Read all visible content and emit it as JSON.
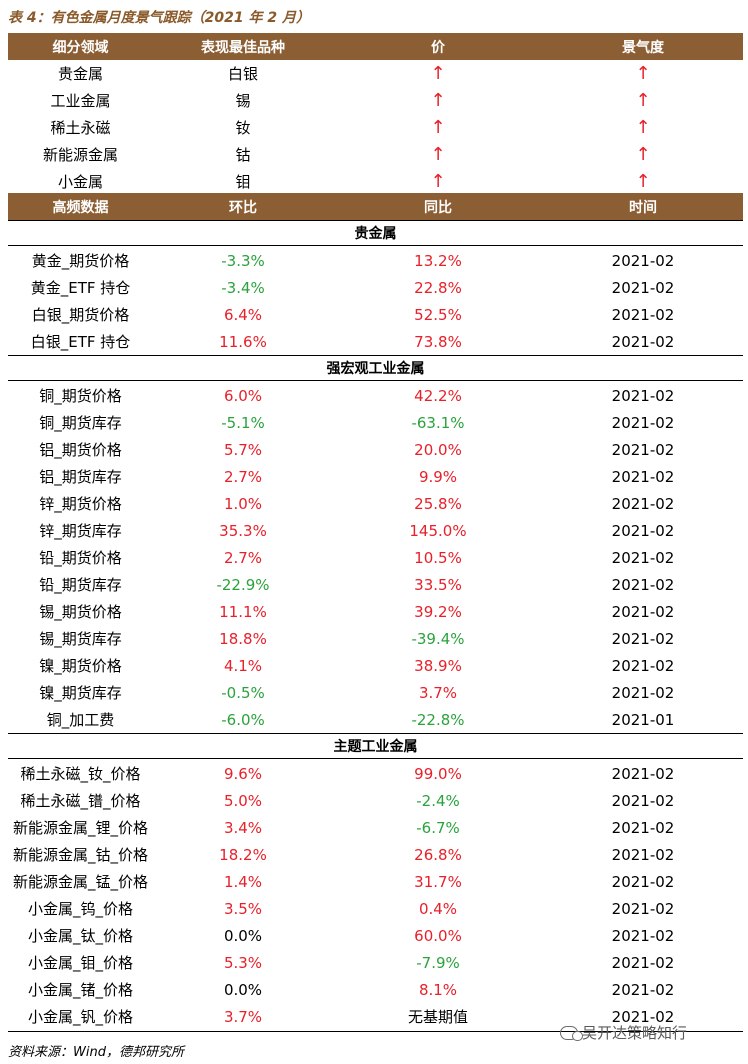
{
  "title": "表 4：有色金属月度景气跟踪（2021 年 2 月）",
  "colors": {
    "header_bg": "#8b5e34",
    "up": "#e8202a",
    "down": "#2aa33c"
  },
  "top_headers": [
    "细分领域",
    "表现最佳品种",
    "价",
    "景气度"
  ],
  "top_rows": [
    {
      "field": "贵金属",
      "best": "白银",
      "price": "↑",
      "sentiment": "↑"
    },
    {
      "field": "工业金属",
      "best": "锡",
      "price": "↑",
      "sentiment": "↑"
    },
    {
      "field": "稀土永磁",
      "best": "钕",
      "price": "↑",
      "sentiment": "↑"
    },
    {
      "field": "新能源金属",
      "best": "钴",
      "price": "↑",
      "sentiment": "↑"
    },
    {
      "field": "小金属",
      "best": "钼",
      "price": "↑",
      "sentiment": "↑"
    }
  ],
  "data_headers": [
    "高频数据",
    "环比",
    "同比",
    "时间"
  ],
  "sections": [
    {
      "title": "贵金属",
      "rows": [
        {
          "name": "黄金_期货价格",
          "mom": "-3.3%",
          "mom_color": "green",
          "yoy": "13.2%",
          "yoy_color": "red",
          "time": "2021-02"
        },
        {
          "name": "黄金_ETF 持仓",
          "mom": "-3.4%",
          "mom_color": "green",
          "yoy": "22.8%",
          "yoy_color": "red",
          "time": "2021-02"
        },
        {
          "name": "白银_期货价格",
          "mom": "6.4%",
          "mom_color": "red",
          "yoy": "52.5%",
          "yoy_color": "red",
          "time": "2021-02"
        },
        {
          "name": "白银_ETF 持仓",
          "mom": "11.6%",
          "mom_color": "red",
          "yoy": "73.8%",
          "yoy_color": "red",
          "time": "2021-02"
        }
      ]
    },
    {
      "title": "强宏观工业金属",
      "rows": [
        {
          "name": "铜_期货价格",
          "mom": "6.0%",
          "mom_color": "red",
          "yoy": "42.2%",
          "yoy_color": "red",
          "time": "2021-02"
        },
        {
          "name": "铜_期货库存",
          "mom": "-5.1%",
          "mom_color": "green",
          "yoy": "-63.1%",
          "yoy_color": "green",
          "time": "2021-02"
        },
        {
          "name": "铝_期货价格",
          "mom": "5.7%",
          "mom_color": "red",
          "yoy": "20.0%",
          "yoy_color": "red",
          "time": "2021-02"
        },
        {
          "name": "铝_期货库存",
          "mom": "2.7%",
          "mom_color": "red",
          "yoy": "9.9%",
          "yoy_color": "red",
          "time": "2021-02"
        },
        {
          "name": "锌_期货价格",
          "mom": "1.0%",
          "mom_color": "red",
          "yoy": "25.8%",
          "yoy_color": "red",
          "time": "2021-02"
        },
        {
          "name": "锌_期货库存",
          "mom": "35.3%",
          "mom_color": "red",
          "yoy": "145.0%",
          "yoy_color": "red",
          "time": "2021-02"
        },
        {
          "name": "铅_期货价格",
          "mom": "2.7%",
          "mom_color": "red",
          "yoy": "10.5%",
          "yoy_color": "red",
          "time": "2021-02"
        },
        {
          "name": "铅_期货库存",
          "mom": "-22.9%",
          "mom_color": "green",
          "yoy": "33.5%",
          "yoy_color": "red",
          "time": "2021-02"
        },
        {
          "name": "锡_期货价格",
          "mom": "11.1%",
          "mom_color": "red",
          "yoy": "39.2%",
          "yoy_color": "red",
          "time": "2021-02"
        },
        {
          "name": "锡_期货库存",
          "mom": "18.8%",
          "mom_color": "red",
          "yoy": "-39.4%",
          "yoy_color": "green",
          "time": "2021-02"
        },
        {
          "name": "镍_期货价格",
          "mom": "4.1%",
          "mom_color": "red",
          "yoy": "38.9%",
          "yoy_color": "red",
          "time": "2021-02"
        },
        {
          "name": "镍_期货库存",
          "mom": "-0.5%",
          "mom_color": "green",
          "yoy": "3.7%",
          "yoy_color": "red",
          "time": "2021-02"
        },
        {
          "name": "铜_加工费",
          "mom": "-6.0%",
          "mom_color": "green",
          "yoy": "-22.8%",
          "yoy_color": "green",
          "time": "2021-01"
        }
      ]
    },
    {
      "title": "主题工业金属",
      "rows": [
        {
          "name": "稀土永磁_钕_价格",
          "mom": "9.6%",
          "mom_color": "red",
          "yoy": "99.0%",
          "yoy_color": "red",
          "time": "2021-02"
        },
        {
          "name": "稀土永磁_镨_价格",
          "mom": "5.0%",
          "mom_color": "red",
          "yoy": "-2.4%",
          "yoy_color": "green",
          "time": "2021-02"
        },
        {
          "name": "新能源金属_锂_价格",
          "mom": "3.4%",
          "mom_color": "red",
          "yoy": "-6.7%",
          "yoy_color": "green",
          "time": "2021-02"
        },
        {
          "name": "新能源金属_钴_价格",
          "mom": "18.2%",
          "mom_color": "red",
          "yoy": "26.8%",
          "yoy_color": "red",
          "time": "2021-02"
        },
        {
          "name": "新能源金属_锰_价格",
          "mom": "1.4%",
          "mom_color": "red",
          "yoy": "31.7%",
          "yoy_color": "red",
          "time": "2021-02"
        },
        {
          "name": "小金属_钨_价格",
          "mom": "3.5%",
          "mom_color": "red",
          "yoy": "0.4%",
          "yoy_color": "red",
          "time": "2021-02"
        },
        {
          "name": "小金属_钛_价格",
          "mom": "0.0%",
          "mom_color": "black",
          "yoy": "60.0%",
          "yoy_color": "red",
          "time": "2021-02"
        },
        {
          "name": "小金属_钼_价格",
          "mom": "5.3%",
          "mom_color": "red",
          "yoy": "-7.9%",
          "yoy_color": "green",
          "time": "2021-02"
        },
        {
          "name": "小金属_锗_价格",
          "mom": "0.0%",
          "mom_color": "black",
          "yoy": "8.1%",
          "yoy_color": "red",
          "time": "2021-02"
        },
        {
          "name": "小金属_钒_价格",
          "mom": "3.7%",
          "mom_color": "red",
          "yoy": "无基期值",
          "yoy_color": "black",
          "time": "2021-02"
        }
      ]
    }
  ],
  "source": "资料来源：Wind，德邦研究所",
  "watermark": "吴开达策略知行",
  "watermark_icon": "wechat-icon"
}
